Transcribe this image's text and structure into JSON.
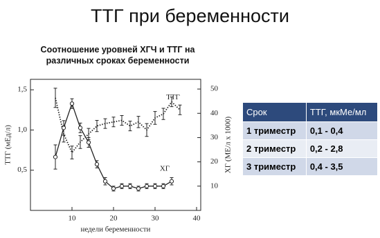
{
  "header": {
    "title": "ТТГ при беременности"
  },
  "chart_data": {
    "type": "line",
    "title": "Соотношение уровней ХГЧ и ТТГ на различных сроках беременности",
    "x_label": "недели беременности",
    "y_label": "ТТГ (мЕд/л)",
    "y2_label": "ХГ (МЕ/л x 1000)",
    "x": [
      6,
      8,
      10,
      12,
      14,
      16,
      18,
      20,
      22,
      24,
      26,
      28,
      30,
      32,
      34,
      36
    ],
    "xlim": [
      0,
      41
    ],
    "xticks": [
      10,
      20,
      30,
      40
    ],
    "ylim": [
      0,
      1.63
    ],
    "yticks": [
      {
        "value": 0.5,
        "label": "0,5"
      },
      {
        "value": 1.0,
        "label": "1,0"
      },
      {
        "value": 1.5,
        "label": "1,5"
      }
    ],
    "y2lim": [
      0,
      54
    ],
    "y2ticks": [
      10,
      20,
      30,
      40,
      50
    ],
    "series": [
      {
        "name": "ТТГ",
        "color": "#222222",
        "dash": "dotted",
        "values": [
          1.4,
          0.95,
          0.72,
          0.85,
          0.95,
          1.05,
          1.08,
          1.1,
          1.12,
          1.05,
          1.1,
          1.0,
          1.15,
          1.2,
          1.35,
          1.25
        ],
        "errors": [
          0.12,
          0.1,
          0.08,
          0.08,
          0.07,
          0.07,
          0.06,
          0.06,
          0.06,
          0.06,
          0.07,
          0.08,
          0.08,
          0.07,
          0.06,
          0.06
        ]
      },
      {
        "name": "ХГ",
        "color": "#222222",
        "dash": "solid",
        "axis": "y2",
        "values": [
          22,
          34,
          44,
          34,
          28,
          19,
          12,
          9,
          10,
          10,
          9,
          10,
          10,
          10,
          12,
          null
        ],
        "errors": [
          5,
          3,
          2,
          2,
          2,
          1.5,
          1.5,
          1,
          1,
          1,
          1,
          1,
          1,
          1,
          1.5,
          null
        ]
      }
    ]
  },
  "table": {
    "header": [
      "Срок",
      "ТТГ, мкМе/мл"
    ],
    "rows": [
      [
        "1 триместр",
        "0,1 - 0,4"
      ],
      [
        "2 триместр",
        "0,2 - 2,8"
      ],
      [
        "3 триместр",
        "0,4 - 3,5"
      ]
    ]
  }
}
